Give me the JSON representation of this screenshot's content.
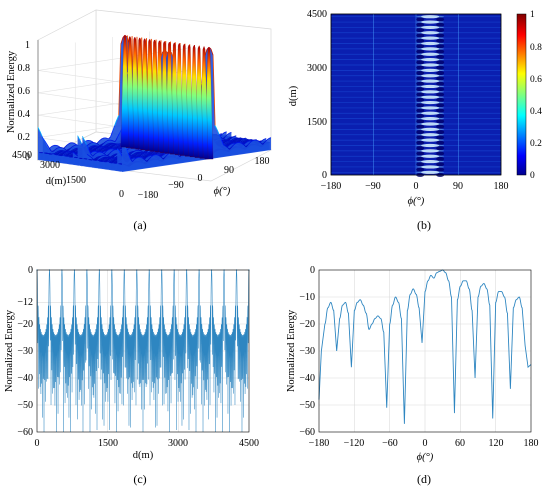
{
  "panels": {
    "a": {
      "caption": "(a)",
      "zlabel": "Normalized Energy",
      "ylabel": "d(m)",
      "xlabel": "ϕ(°)",
      "zticks": [
        "0",
        "0.2",
        "0.4",
        "0.6",
        "0.8",
        "1"
      ],
      "dticks": [
        "4500",
        "3000",
        "1500",
        "0"
      ],
      "phiticks": [
        "−180",
        "−90",
        "0",
        "90",
        "180"
      ]
    },
    "b": {
      "caption": "(b)",
      "ylabel": "d(m)",
      "xlabel": "ϕ(°)",
      "xticks": [
        "−180",
        "−90",
        "0",
        "90",
        "180"
      ],
      "yticks": [
        "4500",
        "3000",
        "1500",
        "0"
      ],
      "cbticks": [
        "1",
        "0.8",
        "0.6",
        "0.4",
        "0.2",
        "0"
      ]
    },
    "c": {
      "caption": "(c)",
      "ylabel": "Normalized Energy",
      "xlabel": "d(m)",
      "xticks": [
        "0",
        "1500",
        "3000",
        "4500"
      ],
      "yticks": [
        "0",
        "−12",
        "−20",
        "−30",
        "−40",
        "−50",
        "−60"
      ]
    },
    "d": {
      "caption": "(d)",
      "ylabel": "Normalized Energy",
      "xlabel": "ϕ(°)",
      "xticks": [
        "−180",
        "−120",
        "−60",
        "0",
        "60",
        "120",
        "180"
      ],
      "yticks": [
        "0",
        "−10",
        "−20",
        "−30",
        "−40",
        "−50",
        "−60"
      ]
    }
  },
  "colors": {
    "line": "#2e86c1",
    "grid": "#dcdcdc",
    "heat_bg": "#0a1fb0"
  },
  "chart_data": [
    {
      "id": "a",
      "type": "surface3d",
      "xlabel": "ϕ(°)",
      "ylabel": "d(m)",
      "zlabel": "Normalized Energy",
      "x_range": [
        -180,
        180
      ],
      "y_range": [
        0,
        4500
      ],
      "z_range": [
        0,
        1
      ],
      "peak_ridge": {
        "phi": 30,
        "peaks_count": 18,
        "peak_value": 1.0
      },
      "colormap": "jet"
    },
    {
      "id": "b",
      "type": "heatmap",
      "xlabel": "ϕ(°)",
      "ylabel": "d(m)",
      "x_range": [
        -180,
        180
      ],
      "y_range": [
        0,
        4500
      ],
      "bright_column_phi": 30,
      "colorbar_range": [
        0,
        1
      ],
      "colormap": "jet"
    },
    {
      "id": "c",
      "type": "line",
      "xlabel": "d(m)",
      "ylabel": "Normalized Energy",
      "xlim": [
        0,
        4500
      ],
      "ylim": [
        -60,
        0
      ],
      "peak_positions_m": [
        0,
        265,
        529,
        794,
        1059,
        1324,
        1588,
        1853,
        2118,
        2382,
        2647,
        2912,
        3176,
        3441,
        3706,
        3971,
        4235,
        4500
      ],
      "peak_value": 0,
      "sidelobe_level": -12,
      "floor": -60
    },
    {
      "id": "d",
      "type": "line",
      "xlabel": "ϕ(°)",
      "ylabel": "Normalized Energy",
      "xlim": [
        -180,
        180
      ],
      "ylim": [
        -60,
        0
      ],
      "x": [
        -180,
        -176,
        -170,
        -165,
        -160,
        -155,
        -150,
        -145,
        -140,
        -135,
        -130,
        -125,
        -120,
        -115,
        -110,
        -105,
        -100,
        -95,
        -90,
        -85,
        -80,
        -75,
        -70,
        -65,
        -60,
        -55,
        -50,
        -45,
        -40,
        -35,
        -30,
        -25,
        -20,
        -15,
        -10,
        -5,
        0,
        5,
        10,
        15,
        20,
        25,
        30,
        35,
        40,
        45,
        50,
        55,
        60,
        65,
        70,
        75,
        80,
        85,
        90,
        95,
        100,
        105,
        110,
        115,
        120,
        125,
        130,
        135,
        140,
        145,
        150,
        155,
        160,
        165,
        170,
        175,
        180
      ],
      "y": [
        -48,
        -30,
        -20,
        -14,
        -12,
        -15,
        -30,
        -18,
        -13,
        -12,
        -16,
        -36,
        -15,
        -12,
        -11,
        -13,
        -16,
        -22,
        -20,
        -18,
        -17,
        -18,
        -23,
        -51,
        -20,
        -13,
        -10,
        -12,
        -18,
        -57,
        -15,
        -9,
        -7,
        -9,
        -14,
        -27,
        -8,
        -4,
        -2,
        -3,
        -1,
        -0.5,
        0,
        -1,
        -4,
        -10,
        -53,
        -11,
        -6,
        -4,
        -4,
        -7,
        -15,
        -40,
        -10,
        -6,
        -5,
        -7,
        -13,
        -55,
        -12,
        -8,
        -8,
        -10,
        -16,
        -44,
        -14,
        -11,
        -10,
        -14,
        -28,
        -36,
        -35
      ]
    }
  ]
}
